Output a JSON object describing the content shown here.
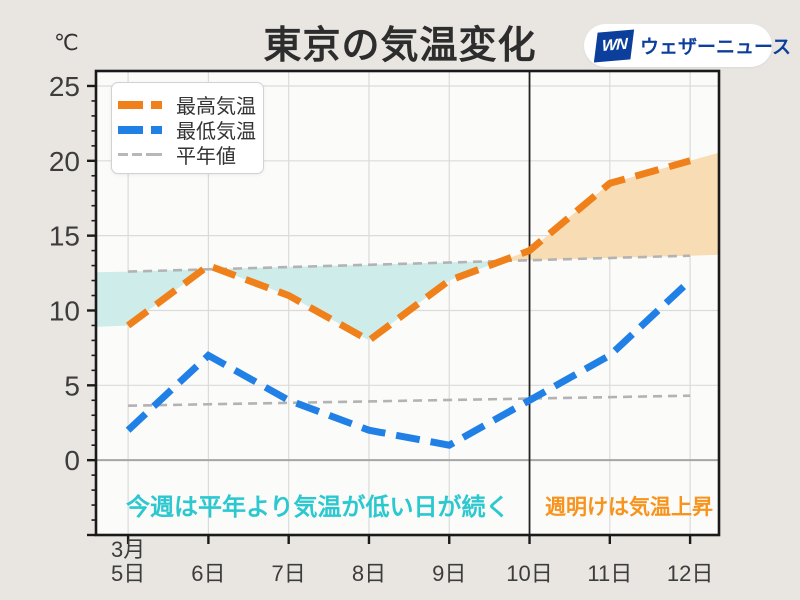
{
  "header": {
    "title": "東京の気温変化",
    "temp_unit": "℃"
  },
  "logo": {
    "mark": "WN",
    "name": "ウェザーニュース",
    "color": "#0c3e9c"
  },
  "legend": {
    "items": [
      {
        "label": "最高気温",
        "color": "#f0801a",
        "thick": true
      },
      {
        "label": "最低気温",
        "color": "#2080e5",
        "thick": true
      },
      {
        "label": "平年値",
        "color": "#b8b8b8",
        "thick": false
      }
    ]
  },
  "annotations": {
    "below_normal": {
      "text": "今週は平年より気温が低い日が続く",
      "color": "#2bc8d0"
    },
    "above_normal": {
      "text": "週明けは気温上昇",
      "color": "#f7941d"
    }
  },
  "chart_data": {
    "type": "line",
    "title": "東京の気温変化",
    "x_month_label": "3月",
    "x_tick_labels": [
      "5日",
      "6日",
      "7日",
      "8日",
      "9日",
      "10日",
      "11日",
      "12日"
    ],
    "x_days": [
      5,
      6,
      7,
      8,
      9,
      10,
      11,
      12
    ],
    "y_ticks": [
      0,
      5,
      10,
      15,
      20,
      25
    ],
    "xlim": [
      4.6,
      12.36
    ],
    "ylim": [
      -5,
      26
    ],
    "series": [
      {
        "name": "最高気温",
        "color": "#f0801a",
        "values": [
          9,
          13,
          11,
          8,
          12,
          14,
          18.5,
          20
        ]
      },
      {
        "name": "最低気温",
        "color": "#2080e5",
        "values": [
          2,
          7,
          4,
          2,
          1,
          4,
          7,
          12
        ]
      }
    ],
    "normals": [
      {
        "name": "平年値(最高気温)",
        "color": "#b3b3b3",
        "points": [
          [
            5,
            12.6
          ],
          [
            12,
            13.66
          ]
        ]
      },
      {
        "name": "平年値(最低気温)",
        "color": "#b3b3b3",
        "points": [
          [
            5,
            3.64
          ],
          [
            12,
            4.31
          ]
        ]
      }
    ],
    "vline_day": 10,
    "fills": [
      {
        "name": "below-normal-area-1",
        "color": "#cdecea",
        "polygon": [
          [
            4.6,
            12.55
          ],
          [
            5,
            12.6
          ],
          [
            5.94,
            12.75
          ],
          [
            5,
            9
          ],
          [
            4.6,
            8.9
          ]
        ]
      },
      {
        "name": "below-normal-area-2",
        "color": "#cdecea",
        "polygon": [
          [
            6.11,
            12.78
          ],
          [
            7,
            12.91
          ],
          [
            8,
            13.06
          ],
          [
            9,
            13.21
          ],
          [
            9.65,
            13.31
          ],
          [
            9,
            12
          ],
          [
            8,
            8
          ],
          [
            7,
            11
          ]
        ]
      },
      {
        "name": "above-normal-area",
        "color": "#f8dcb4",
        "polygon": [
          [
            9.65,
            13.31
          ],
          [
            10,
            14
          ],
          [
            11,
            18.5
          ],
          [
            12,
            20
          ],
          [
            12.36,
            20.54
          ],
          [
            12.36,
            13.72
          ],
          [
            12,
            13.66
          ],
          [
            11,
            13.51
          ],
          [
            10,
            13.36
          ]
        ]
      }
    ]
  },
  "plot": {
    "bg": "#fbfbfa",
    "outer_bg": "#e9e6e2",
    "grid_color": "#dbdbd9",
    "zero_line_color": "#a6a6a6",
    "border_color": "#1a1a1a",
    "vline_color": "#222222",
    "tick_label_color": "#3d3d3d"
  }
}
